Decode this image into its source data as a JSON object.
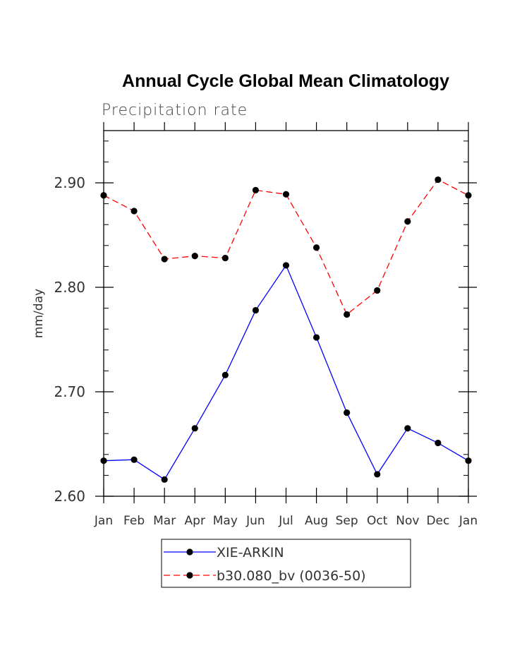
{
  "chart_data": {
    "type": "line",
    "title": "Annual Cycle Global Mean Climatology",
    "subtitle": "Precipitation rate",
    "ylabel": "mm/day",
    "xlabel": "",
    "categories": [
      "Jan",
      "Feb",
      "Mar",
      "Apr",
      "May",
      "Jun",
      "Jul",
      "Aug",
      "Sep",
      "Oct",
      "Nov",
      "Dec",
      "Jan"
    ],
    "ylim": [
      2.6,
      2.95
    ],
    "yticks": [
      {
        "value": 2.6,
        "label": "2.60"
      },
      {
        "value": 2.7,
        "label": "2.70"
      },
      {
        "value": 2.8,
        "label": "2.80"
      },
      {
        "value": 2.9,
        "label": "2.90"
      }
    ],
    "minor_step": 0.02,
    "grid": false,
    "legend_position": "bottom-center",
    "series": [
      {
        "name": "XIE-ARKIN",
        "color": "#0000ff",
        "style": "solid",
        "marker": "circle",
        "values": [
          2.634,
          2.635,
          2.616,
          2.665,
          2.716,
          2.778,
          2.821,
          2.752,
          2.68,
          2.621,
          2.665,
          2.651,
          2.634
        ]
      },
      {
        "name": "b30.080_bv (0036-50)",
        "color": "#ff0000",
        "style": "dashed",
        "marker": "circle",
        "values": [
          2.888,
          2.873,
          2.827,
          2.83,
          2.828,
          2.893,
          2.889,
          2.838,
          2.774,
          2.797,
          2.863,
          2.903,
          2.888
        ]
      }
    ]
  }
}
